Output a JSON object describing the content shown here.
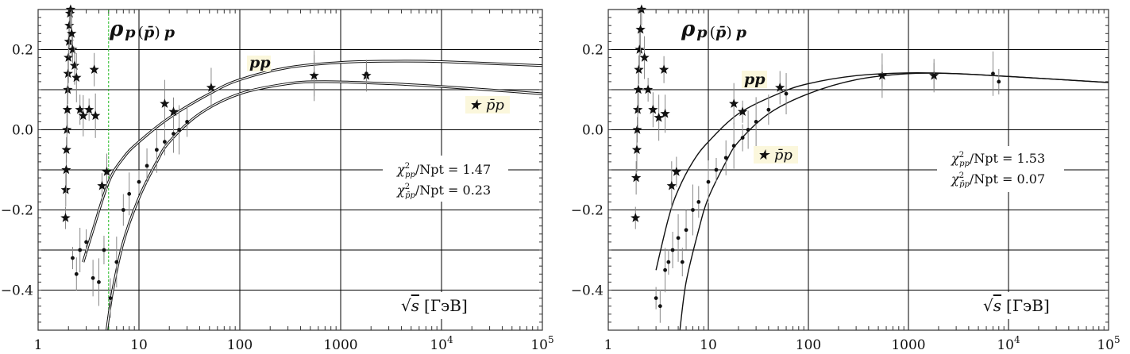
{
  "chart_data": [
    {
      "type": "scatter",
      "title": "ρ p(p̄)p",
      "title_parts": {
        "rho": "ρ",
        "p1": "p",
        "paren_open": "(",
        "pbar": "p̄",
        "paren_close": ")",
        "p2": "p"
      },
      "xlabel": "√s [ГэВ]",
      "xlabel_parts": {
        "sqrt": "√",
        "s": "s",
        "unit": "[ГэВ]"
      },
      "ylabel": "",
      "xscale": "log",
      "xlim": [
        1,
        100000
      ],
      "ylim": [
        -0.5,
        0.3
      ],
      "x_ticks": [
        {
          "value": 1,
          "label": "1"
        },
        {
          "value": 10,
          "label": "10"
        },
        {
          "value": 100,
          "label": "100"
        },
        {
          "value": 1000,
          "label": "1000"
        },
        {
          "value": 10000,
          "label": "10",
          "exp": "4"
        },
        {
          "value": 100000,
          "label": "10",
          "exp": "5"
        }
      ],
      "y_ticks": [
        {
          "value": 0.2,
          "label": "0.2"
        },
        {
          "value": 0.1,
          "label": ""
        },
        {
          "value": 0.0,
          "label": "0.0"
        },
        {
          "value": -0.1,
          "label": ""
        },
        {
          "value": -0.2,
          "label": "−0.2"
        },
        {
          "value": -0.3,
          "label": ""
        },
        {
          "value": -0.4,
          "label": "−0.4"
        }
      ],
      "vline": {
        "x": 5.0,
        "color": "#22bb22",
        "style": "dashed"
      },
      "series": [
        {
          "name": "pp",
          "label": "pp",
          "marker": "star",
          "points": [
            [
              1.87,
              -0.22
            ],
            [
              1.88,
              -0.15
            ],
            [
              1.9,
              -0.1
            ],
            [
              1.91,
              -0.05
            ],
            [
              1.93,
              0.0
            ],
            [
              1.95,
              0.05
            ],
            [
              1.97,
              0.1
            ],
            [
              1.98,
              0.14
            ],
            [
              2.0,
              0.18
            ],
            [
              2.02,
              0.22
            ],
            [
              2.04,
              0.26
            ],
            [
              2.07,
              0.29
            ],
            [
              2.1,
              0.3
            ],
            [
              2.15,
              0.24
            ],
            [
              2.2,
              0.2
            ],
            [
              2.3,
              0.16
            ],
            [
              2.4,
              0.13
            ],
            [
              2.6,
              0.05
            ],
            [
              2.8,
              0.035
            ],
            [
              3.2,
              0.05
            ],
            [
              3.6,
              0.15
            ],
            [
              3.7,
              0.035
            ],
            [
              4.3,
              -0.14
            ],
            [
              4.8,
              -0.105
            ],
            [
              18.0,
              0.065
            ],
            [
              22.0,
              0.045
            ],
            [
              52.0,
              0.105
            ],
            [
              546.0,
              0.135
            ],
            [
              1800.0,
              0.135
            ]
          ],
          "curve": [
            [
              2.8,
              -0.33
            ],
            [
              3.5,
              -0.25
            ],
            [
              5,
              -0.13
            ],
            [
              7,
              -0.07
            ],
            [
              10,
              -0.03
            ],
            [
              20,
              0.03
            ],
            [
              50,
              0.09
            ],
            [
              100,
              0.125
            ],
            [
              300,
              0.155
            ],
            [
              1000,
              0.168
            ],
            [
              3000,
              0.171
            ],
            [
              10000,
              0.17
            ],
            [
              100000,
              0.16
            ]
          ]
        },
        {
          "name": "p̄p",
          "label": "★ p̄p",
          "marker": "dot",
          "points": [
            [
              2.2,
              -0.32
            ],
            [
              2.4,
              -0.36
            ],
            [
              2.6,
              -0.3
            ],
            [
              3.0,
              -0.28
            ],
            [
              3.5,
              -0.37
            ],
            [
              4.0,
              -0.38
            ],
            [
              4.5,
              -0.3
            ],
            [
              5.2,
              -0.42
            ],
            [
              6.0,
              -0.33
            ],
            [
              7.0,
              -0.2
            ],
            [
              8.0,
              -0.16
            ],
            [
              10.0,
              -0.13
            ],
            [
              12.0,
              -0.09
            ],
            [
              15.0,
              -0.05
            ],
            [
              18.0,
              -0.03
            ],
            [
              22.0,
              -0.01
            ],
            [
              25.0,
              0.0
            ],
            [
              30.0,
              0.02
            ],
            [
              546.0,
              0.135
            ],
            [
              1800.0,
              0.14
            ]
          ],
          "curve": [
            [
              4.8,
              -0.5
            ],
            [
              5.5,
              -0.4
            ],
            [
              7,
              -0.28
            ],
            [
              10,
              -0.17
            ],
            [
              15,
              -0.08
            ],
            [
              20,
              -0.03
            ],
            [
              40,
              0.04
            ],
            [
              100,
              0.09
            ],
            [
              300,
              0.115
            ],
            [
              700,
              0.12
            ],
            [
              3000,
              0.115
            ],
            [
              10000,
              0.108
            ],
            [
              100000,
              0.09
            ]
          ]
        }
      ],
      "annotations": [
        {
          "text": "χ²pp/Npt = 1.47",
          "chi": "χ",
          "sup": "2",
          "sub": "pp",
          "rest": "/Npt = 1.47"
        },
        {
          "text": "χ²p̄p/Npt = 0.23",
          "chi": "χ",
          "sup": "2",
          "sub": "p̄p",
          "rest": "/Npt = 0.23"
        }
      ]
    },
    {
      "type": "scatter",
      "title": "ρ p(p̄)p",
      "title_parts": {
        "rho": "ρ",
        "p1": "p",
        "paren_open": "(",
        "pbar": "p̄",
        "paren_close": ")",
        "p2": "p"
      },
      "xlabel": "√s [ГэВ]",
      "xlabel_parts": {
        "sqrt": "√",
        "s": "s",
        "unit": "[ГэВ]"
      },
      "ylabel": "",
      "xscale": "log",
      "xlim": [
        1,
        100000
      ],
      "ylim": [
        -0.5,
        0.3
      ],
      "x_ticks": [
        {
          "value": 1,
          "label": "1"
        },
        {
          "value": 10,
          "label": "10"
        },
        {
          "value": 100,
          "label": "100"
        },
        {
          "value": 1000,
          "label": "1000"
        },
        {
          "value": 10000,
          "label": "10",
          "exp": "4"
        },
        {
          "value": 100000,
          "label": "10",
          "exp": "5"
        }
      ],
      "y_ticks": [
        {
          "value": 0.2,
          "label": "0.2"
        },
        {
          "value": 0.1,
          "label": ""
        },
        {
          "value": 0.0,
          "label": "0.0"
        },
        {
          "value": -0.1,
          "label": ""
        },
        {
          "value": -0.2,
          "label": "−0.2"
        },
        {
          "value": -0.3,
          "label": ""
        },
        {
          "value": -0.4,
          "label": "−0.4"
        }
      ],
      "series": [
        {
          "name": "pp",
          "label": "pp",
          "marker": "star",
          "points": [
            [
              1.87,
              -0.22
            ],
            [
              1.9,
              -0.12
            ],
            [
              1.93,
              -0.05
            ],
            [
              1.95,
              0.0
            ],
            [
              1.97,
              0.05
            ],
            [
              2.0,
              0.1
            ],
            [
              2.02,
              0.15
            ],
            [
              2.05,
              0.2
            ],
            [
              2.1,
              0.25
            ],
            [
              2.15,
              0.3
            ],
            [
              2.3,
              0.18
            ],
            [
              2.5,
              0.1
            ],
            [
              2.8,
              0.05
            ],
            [
              3.2,
              0.03
            ],
            [
              3.6,
              0.15
            ],
            [
              3.7,
              0.04
            ],
            [
              4.3,
              -0.14
            ],
            [
              4.8,
              -0.105
            ],
            [
              18.0,
              0.065
            ],
            [
              22.0,
              0.045
            ],
            [
              52.0,
              0.105
            ],
            [
              546.0,
              0.135
            ],
            [
              1800.0,
              0.135
            ]
          ],
          "curve": [
            [
              3.0,
              -0.35
            ],
            [
              4,
              -0.22
            ],
            [
              5,
              -0.15
            ],
            [
              7,
              -0.08
            ],
            [
              10,
              -0.03
            ],
            [
              20,
              0.04
            ],
            [
              50,
              0.09
            ],
            [
              100,
              0.115
            ],
            [
              300,
              0.135
            ],
            [
              1000,
              0.142
            ],
            [
              3000,
              0.14
            ],
            [
              10000,
              0.133
            ],
            [
              100000,
              0.118
            ]
          ]
        },
        {
          "name": "p̄p",
          "label": "★ p̄p",
          "marker": "dot",
          "points": [
            [
              3.0,
              -0.42
            ],
            [
              3.3,
              -0.44
            ],
            [
              3.7,
              -0.35
            ],
            [
              4.0,
              -0.33
            ],
            [
              4.4,
              -0.3
            ],
            [
              5.0,
              -0.27
            ],
            [
              5.5,
              -0.33
            ],
            [
              6.0,
              -0.25
            ],
            [
              7.0,
              -0.2
            ],
            [
              8.0,
              -0.18
            ],
            [
              10.0,
              -0.13
            ],
            [
              12.0,
              -0.1
            ],
            [
              15.0,
              -0.07
            ],
            [
              18.0,
              -0.04
            ],
            [
              22.0,
              -0.02
            ],
            [
              25.0,
              0.0
            ],
            [
              30.0,
              0.02
            ],
            [
              40.0,
              0.05
            ],
            [
              60.0,
              0.09
            ],
            [
              546.0,
              0.135
            ],
            [
              1800.0,
              0.135
            ],
            [
              7000.0,
              0.14
            ],
            [
              8000.0,
              0.12
            ]
          ],
          "curve": [
            [
              5.2,
              -0.5
            ],
            [
              6,
              -0.38
            ],
            [
              8,
              -0.25
            ],
            [
              10,
              -0.17
            ],
            [
              15,
              -0.08
            ],
            [
              20,
              -0.03
            ],
            [
              40,
              0.04
            ],
            [
              100,
              0.09
            ],
            [
              300,
              0.125
            ],
            [
              1000,
              0.14
            ],
            [
              3000,
              0.14
            ],
            [
              10000,
              0.133
            ],
            [
              100000,
              0.118
            ]
          ]
        }
      ],
      "annotations": [
        {
          "text": "χ²pp/Npt = 1.53",
          "chi": "χ",
          "sup": "2",
          "sub": "pp",
          "rest": "/Npt = 1.53"
        },
        {
          "text": "χ²p̄p/Npt = 0.07",
          "chi": "χ",
          "sup": "2",
          "sub": "p̄p",
          "rest": "/Npt = 0.07"
        }
      ]
    }
  ],
  "colors": {
    "grid": "#000000",
    "frame": "#333333",
    "curve": "#111111",
    "errbar": "#888888",
    "label_bg": "#fbf7dc",
    "vline": "#22bb22"
  }
}
